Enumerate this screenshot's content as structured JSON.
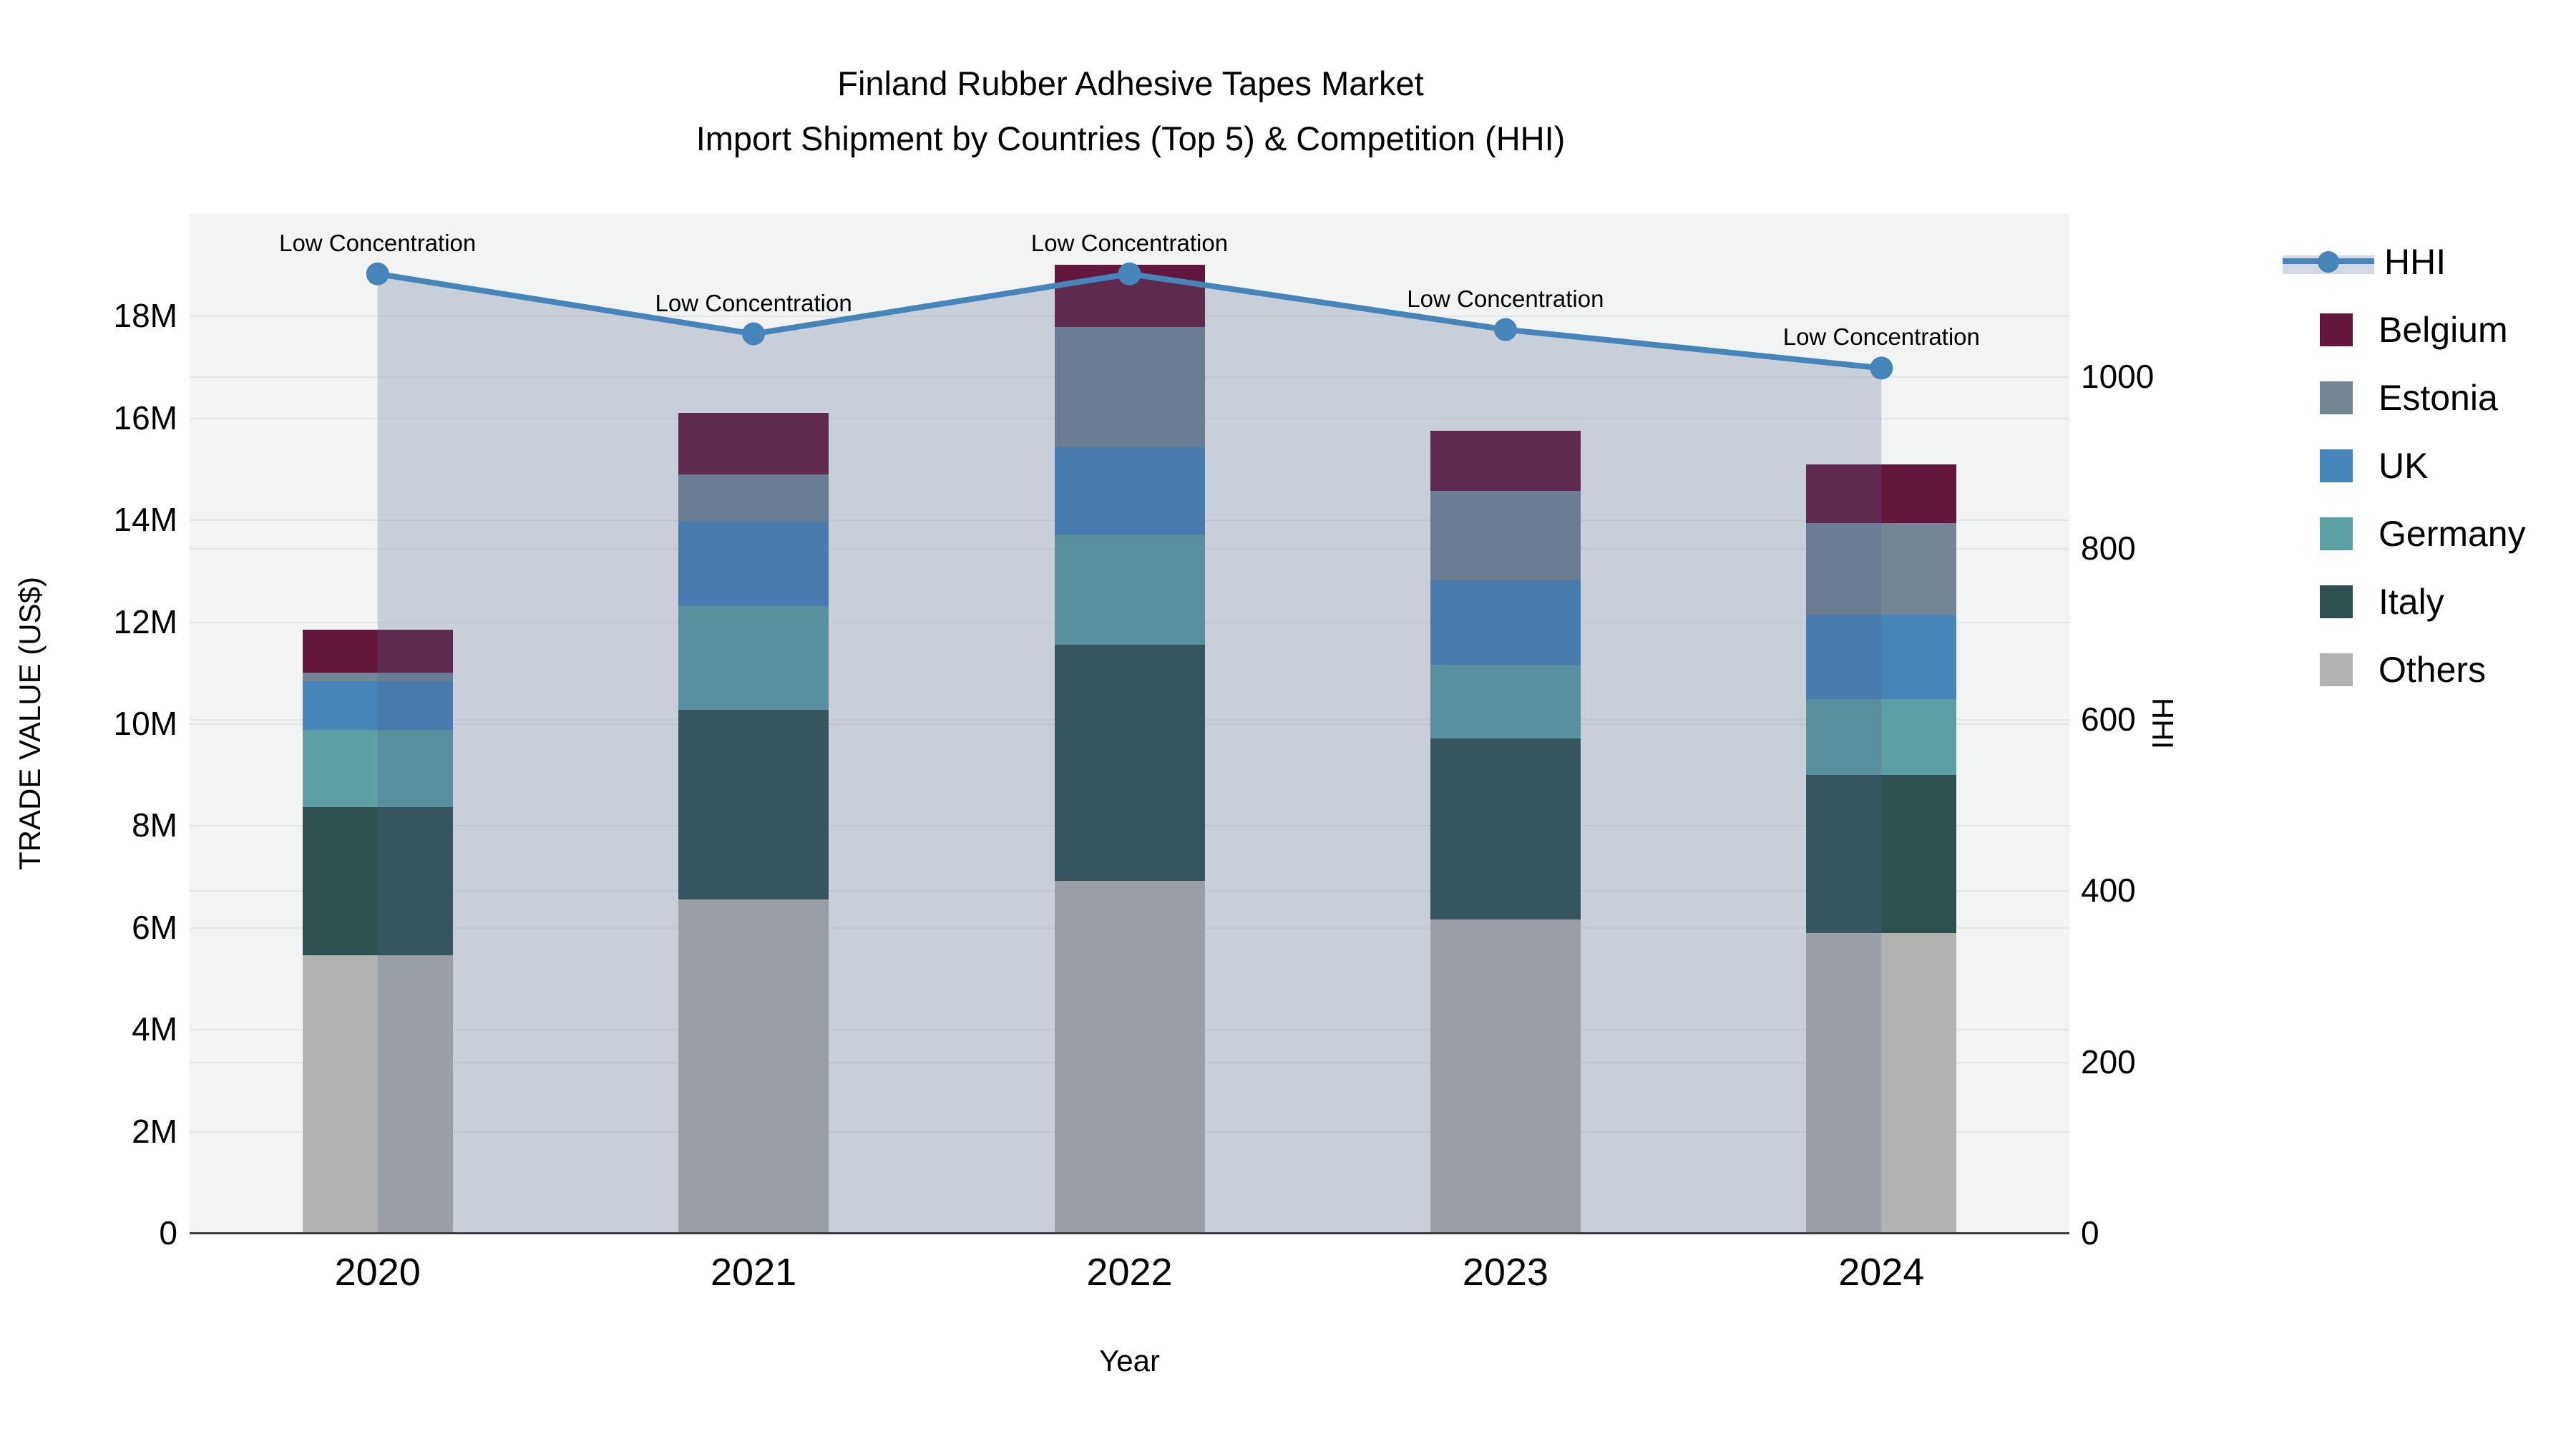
{
  "title": {
    "line1": "Finland Rubber Adhesive Tapes Market",
    "line2": "Import Shipment by Countries (Top 5) & Competition (HHI)"
  },
  "axes": {
    "left": {
      "title": "TRADE VALUE (US$)",
      "ticks": [
        "0",
        "2M",
        "4M",
        "6M",
        "8M",
        "10M",
        "12M",
        "14M",
        "16M",
        "18M"
      ],
      "tick_values": [
        0,
        2000000,
        4000000,
        6000000,
        8000000,
        10000000,
        12000000,
        14000000,
        16000000,
        18000000
      ]
    },
    "right": {
      "title": "HHI",
      "ticks": [
        "0",
        "200",
        "400",
        "600",
        "800",
        "1000"
      ],
      "tick_values": [
        0,
        200,
        400,
        600,
        800,
        1000
      ]
    },
    "x": {
      "title": "Year"
    }
  },
  "chart_data": {
    "type": "bar",
    "subtype": "stacked-bars-with-line",
    "title": "Finland Rubber Adhesive Tapes Market — Import Shipment by Countries (Top 5) & Competition (HHI)",
    "categories": [
      "2020",
      "2021",
      "2022",
      "2023",
      "2024"
    ],
    "xlabel": "Year",
    "ylabel": "TRADE VALUE (US$)",
    "y2label": "HHI",
    "ylim": [
      0,
      20000000
    ],
    "y2lim": [
      0,
      1190
    ],
    "grid": true,
    "legend_position": "right",
    "series": [
      {
        "name": "Others",
        "color": "#b2b2b0",
        "values": [
          5450000,
          6540000,
          6910000,
          6150000,
          5880000
        ]
      },
      {
        "name": "Italy",
        "color": "#2e5150",
        "values": [
          2910000,
          3730000,
          4630000,
          3550000,
          3110000
        ]
      },
      {
        "name": "Germany",
        "color": "#5c9fa3",
        "values": [
          1510000,
          2030000,
          2170000,
          1450000,
          1490000
        ]
      },
      {
        "name": "UK",
        "color": "#4685ba",
        "values": [
          960000,
          1660000,
          1710000,
          1660000,
          1650000
        ]
      },
      {
        "name": "Estonia",
        "color": "#748694",
        "values": [
          170000,
          930000,
          2360000,
          1750000,
          1800000
        ]
      },
      {
        "name": "Belgium",
        "color": "#63173a",
        "values": [
          840000,
          1210000,
          1220000,
          1180000,
          1150000
        ]
      }
    ],
    "bar_totals": [
      11840000,
      16100000,
      19000000,
      15740000,
      15080000
    ],
    "line_series": {
      "name": "HHI",
      "axis": "right",
      "color": "#4685ba",
      "area_fill": "rgba(80,100,140,0.25)",
      "values": [
        1120,
        1050,
        1120,
        1055,
        1010
      ]
    },
    "annotations": [
      {
        "text": "Low Concentration",
        "category": "2020"
      },
      {
        "text": "Low Concentration",
        "category": "2021"
      },
      {
        "text": "Low Concentration",
        "category": "2022"
      },
      {
        "text": "Low Concentration",
        "category": "2023"
      },
      {
        "text": "Low Concentration",
        "category": "2024"
      }
    ]
  },
  "legend": {
    "items": [
      {
        "label": "HHI",
        "type": "line",
        "color": "#4685ba"
      },
      {
        "label": "Belgium",
        "type": "swatch",
        "color": "#63173a"
      },
      {
        "label": "Estonia",
        "type": "swatch",
        "color": "#748694"
      },
      {
        "label": "UK",
        "type": "swatch",
        "color": "#4685ba"
      },
      {
        "label": "Germany",
        "type": "swatch",
        "color": "#5c9fa3"
      },
      {
        "label": "Italy",
        "type": "swatch",
        "color": "#2e5150"
      },
      {
        "label": "Others",
        "type": "swatch",
        "color": "#b2b2b0"
      }
    ]
  }
}
